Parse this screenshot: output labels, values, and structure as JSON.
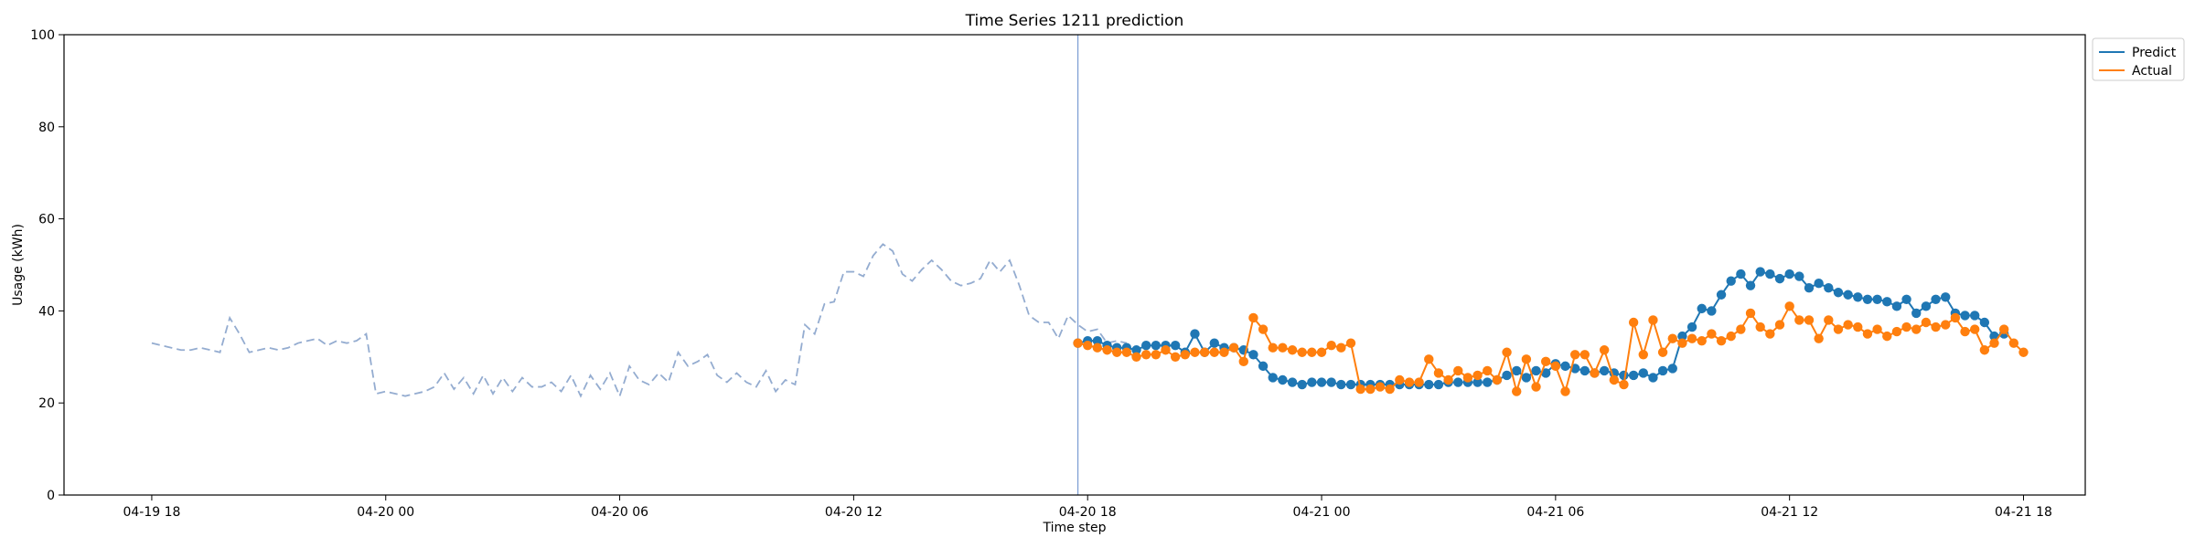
{
  "chart_data": {
    "type": "line",
    "title": "Time Series 1211 prediction",
    "xlabel": "Time step",
    "ylabel": "Usage (kWh)",
    "xlim": [
      "2024-04-19 15:45",
      "2024-04-21 19:35"
    ],
    "ylim": [
      0,
      100
    ],
    "x_ticks": [
      {
        "value": "2024-04-19 18:00",
        "label": "04-19 18"
      },
      {
        "value": "2024-04-20 00:00",
        "label": "04-20 00"
      },
      {
        "value": "2024-04-20 06:00",
        "label": "04-20 06"
      },
      {
        "value": "2024-04-20 12:00",
        "label": "04-20 12"
      },
      {
        "value": "2024-04-20 18:00",
        "label": "04-20 18"
      },
      {
        "value": "2024-04-21 00:00",
        "label": "04-21 00"
      },
      {
        "value": "2024-04-21 06:00",
        "label": "04-21 06"
      },
      {
        "value": "2024-04-21 12:00",
        "label": "04-21 12"
      },
      {
        "value": "2024-04-21 18:00",
        "label": "04-21 18"
      }
    ],
    "y_ticks": [
      0,
      20,
      40,
      60,
      80,
      100
    ],
    "grid": false,
    "legend": {
      "placement": "outside top-right"
    },
    "forecast_start": "2024-04-20 17:45",
    "history": {
      "style": "dashed",
      "color": "#94acd0",
      "start": "2024-04-19 18:00",
      "step_minutes": 15,
      "values": [
        33,
        32.5,
        32,
        31.5,
        31.5,
        32,
        31.5,
        31,
        38.5,
        35,
        31,
        31.5,
        32,
        31.5,
        32,
        33,
        33.5,
        34,
        32.5,
        33.5,
        33,
        33.5,
        35,
        22,
        22.5,
        22,
        21.5,
        22,
        22.5,
        23.5,
        26.5,
        23,
        25.5,
        22,
        26,
        22,
        25.5,
        22.5,
        25.5,
        23.5,
        23.5,
        24.5,
        22.5,
        26,
        21.5,
        26,
        23,
        26.5,
        21.5,
        28,
        25,
        24,
        26.5,
        24.5,
        31,
        28,
        29,
        30.5,
        26,
        24.5,
        26.5,
        24.5,
        23.5,
        27,
        22.5,
        25,
        24,
        37,
        35,
        41.5,
        42,
        48.5,
        48.5,
        47.5,
        52,
        54.5,
        53,
        48,
        46.5,
        49,
        51,
        49,
        46.5,
        45.5,
        46,
        47,
        51,
        48.5,
        51,
        45.5,
        39,
        37.5,
        37.5,
        34,
        39,
        37,
        35.5,
        36,
        33,
        33.5,
        33
      ]
    },
    "series": [
      {
        "name": "Predict",
        "color": "#1f77b4",
        "start": "2024-04-20 17:45",
        "step_minutes": 15,
        "values": [
          33,
          33.5,
          33.5,
          32.5,
          32,
          32,
          31.5,
          32.5,
          32.5,
          32.5,
          32.5,
          31,
          35,
          31,
          33,
          32,
          32,
          31.5,
          30.5,
          28,
          25.5,
          25,
          24.5,
          24,
          24.5,
          24.5,
          24.5,
          24,
          24,
          24,
          24,
          24,
          24,
          24,
          24,
          24,
          24,
          24,
          24.5,
          24.5,
          24.5,
          24.5,
          24.5,
          25,
          26,
          27,
          25.5,
          27,
          26.5,
          28.5,
          28,
          27.5,
          27,
          26.5,
          27,
          26.5,
          26,
          26,
          26.5,
          25.5,
          27,
          27.5,
          34.5,
          36.5,
          40.5,
          40,
          43.5,
          46.5,
          48,
          45.5,
          48.5,
          48,
          47,
          48,
          47.5,
          45,
          46,
          45,
          44,
          43.5,
          43,
          42.5,
          42.5,
          42,
          41,
          42.5,
          39.5,
          41,
          42.5,
          43,
          39.5,
          39,
          39,
          37.5,
          34.5,
          35
        ]
      },
      {
        "name": "Actual",
        "color": "#ff7f0e",
        "start": "2024-04-20 17:45",
        "step_minutes": 15,
        "values": [
          33,
          32.5,
          32,
          31.5,
          31,
          31,
          30,
          30.5,
          30.5,
          31.5,
          30,
          30.5,
          31,
          31,
          31,
          31,
          32,
          29,
          38.5,
          36,
          32,
          32,
          31.5,
          31,
          31,
          31,
          32.5,
          32,
          33,
          23,
          23,
          23.5,
          23,
          25,
          24.5,
          24.5,
          29.5,
          26.5,
          25,
          27,
          25.5,
          26,
          27,
          25,
          31,
          22.5,
          29.5,
          23.5,
          29,
          28,
          22.5,
          30.5,
          30.5,
          26.5,
          31.5,
          25,
          24,
          37.5,
          30.5,
          38,
          31,
          34,
          33,
          34,
          33.5,
          35,
          33.5,
          34.5,
          36,
          39.5,
          36.5,
          35,
          37,
          41,
          38,
          38,
          34,
          38,
          36,
          37,
          36.5,
          35,
          36,
          34.5,
          35.5,
          36.5,
          36,
          37.5,
          36.5,
          37,
          38.5,
          35.5,
          36,
          31.5,
          33,
          36,
          33,
          31
        ]
      }
    ]
  }
}
